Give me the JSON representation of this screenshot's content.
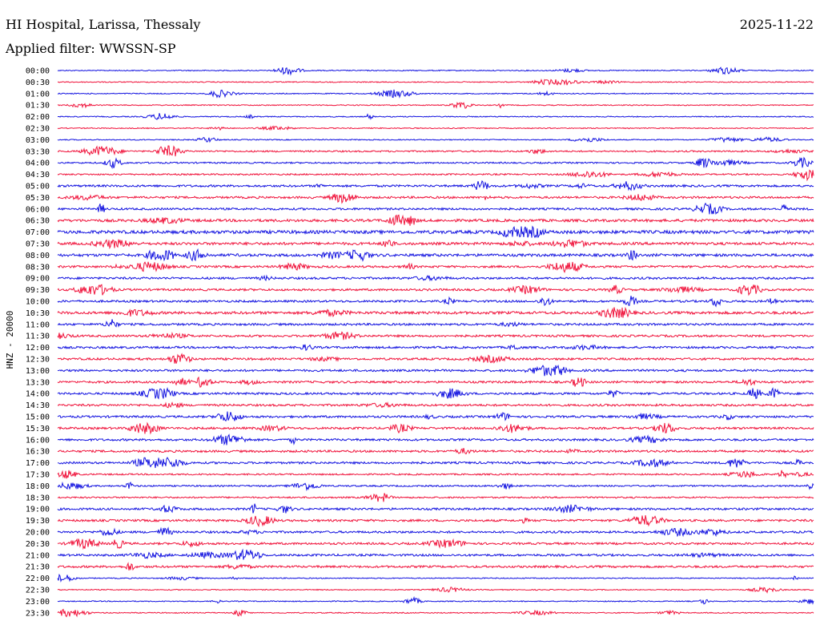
{
  "header": {
    "station": "HI Hospital, Larissa, Thessaly",
    "date": "2025-11-22",
    "filter": "Applied filter: WWSSN-SP"
  },
  "chart_data": {
    "type": "line",
    "ylabel": "HNZ - 20000",
    "colors": {
      "a": "#1414e0",
      "b": "#f0143c"
    },
    "rows": [
      "00:00",
      "00:30",
      "01:00",
      "01:30",
      "02:00",
      "02:30",
      "03:00",
      "03:30",
      "04:00",
      "04:30",
      "05:00",
      "05:30",
      "06:00",
      "06:30",
      "07:00",
      "07:30",
      "08:00",
      "08:30",
      "09:00",
      "09:30",
      "10:00",
      "10:30",
      "11:00",
      "11:30",
      "12:00",
      "12:30",
      "13:00",
      "13:30",
      "14:00",
      "14:30",
      "15:00",
      "15:30",
      "16:00",
      "16:30",
      "17:00",
      "17:30",
      "18:00",
      "18:30",
      "19:00",
      "19:30",
      "20:00",
      "20:30",
      "21:00",
      "21:30",
      "22:00",
      "22:30",
      "23:00",
      "23:30"
    ],
    "noise_level": [
      1,
      1,
      1,
      1,
      1,
      1,
      1,
      2,
      2,
      2,
      3,
      3,
      3,
      4,
      5,
      4,
      4,
      3,
      3,
      3,
      3,
      4,
      3,
      3,
      3,
      3,
      3,
      3,
      3,
      3,
      3,
      3,
      3,
      3,
      3,
      2,
      2,
      2,
      3,
      3,
      3,
      3,
      3,
      3,
      1,
      1,
      1,
      1
    ]
  }
}
